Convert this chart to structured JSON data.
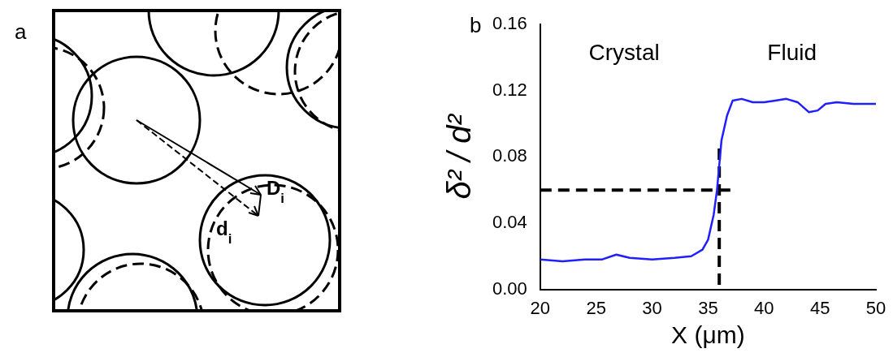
{
  "chart_data": [
    {
      "type": "other",
      "title": "a",
      "annotations": [
        "D$_{i}$",
        "d$_{i}$"
      ]
    },
    {
      "type": "line",
      "title": "b",
      "xlabel": "X (μm)",
      "ylabel": "δ² / d²",
      "annotations": [
        "Crystal",
        "Fluid"
      ],
      "xlim": [
        20,
        50
      ],
      "xticks": [
        20,
        25,
        30,
        35,
        40,
        45,
        50
      ],
      "ylim": [
        0,
        0.16
      ],
      "yticks": [
        {
          "value": 0,
          "label": "0.00"
        },
        {
          "value": 0.04,
          "label": "0.04"
        },
        {
          "value": 0.08,
          "label": "0.08"
        },
        {
          "value": 0.12,
          "label": "0.12"
        },
        {
          "value": 0.16,
          "label": "0.16"
        }
      ],
      "grid": false,
      "legend": false,
      "marker": "none",
      "series": [
        {
          "color": "#1f1fff",
          "line_style": "solid",
          "x": [
            20,
            22,
            24,
            25.5,
            26.8,
            28,
            30,
            32,
            33.5,
            34.5,
            35,
            35.5,
            35.8,
            36.2,
            36.7,
            37.2,
            38,
            39,
            40,
            41,
            42,
            43,
            44,
            44.8,
            45.5,
            46.5,
            48,
            50
          ],
          "values": [
            0.018,
            0.017,
            0.018,
            0.018,
            0.021,
            0.019,
            0.018,
            0.019,
            0.02,
            0.024,
            0.03,
            0.045,
            0.06,
            0.09,
            0.105,
            0.114,
            0.115,
            0.113,
            0.113,
            0.114,
            0.115,
            0.113,
            0.107,
            0.108,
            0.112,
            0.113,
            0.112,
            0.112
          ]
        },
        {
          "color": "#000000",
          "line_style": "dashed",
          "x": [
            36,
            36
          ],
          "values": [
            0.085,
            0
          ]
        },
        {
          "color": "#000000",
          "line_style": "dashed",
          "x": [
            20,
            37
          ],
          "values": [
            0.06,
            0.06
          ]
        }
      ]
    }
  ]
}
